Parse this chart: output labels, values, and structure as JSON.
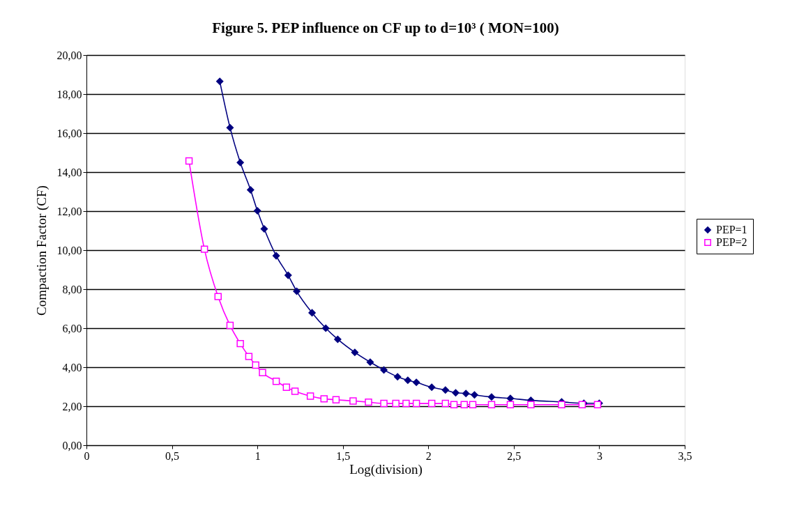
{
  "chart_data": {
    "type": "line",
    "title": "Figure 5. PEP influence on CF  up to d=10³ ( MON=100)",
    "xlabel": "Log(division)",
    "ylabel": "Compaction Factor (CF)",
    "xlim": [
      0,
      3.5
    ],
    "xticks": [
      0,
      {
        "value": 0.5,
        "label": "0,5"
      },
      1,
      {
        "value": 1.5,
        "label": "1,5"
      },
      2,
      {
        "value": 2.5,
        "label": "2,5"
      },
      3,
      {
        "value": 3.5,
        "label": "3,5"
      }
    ],
    "ylim": [
      0,
      20
    ],
    "yticks": [
      {
        "value": 0,
        "label": "0,00"
      },
      {
        "value": 2,
        "label": "2,00"
      },
      {
        "value": 4,
        "label": "4,00"
      },
      {
        "value": 6,
        "label": "6,00"
      },
      {
        "value": 8,
        "label": "8,00"
      },
      {
        "value": 10,
        "label": "10,00"
      },
      {
        "value": 12,
        "label": "12,00"
      },
      {
        "value": 14,
        "label": "14,00"
      },
      {
        "value": 16,
        "label": "16,00"
      },
      {
        "value": 18,
        "label": "18,00"
      },
      {
        "value": 20,
        "label": "20,00"
      }
    ],
    "grid": "y",
    "legend": "right",
    "line_style": "solid",
    "series": [
      {
        "name": "PEP=1",
        "color": "#000080",
        "marker": "diamond",
        "x": [
          0.78,
          0.84,
          0.9,
          0.96,
          1.0,
          1.04,
          1.11,
          1.18,
          1.23,
          1.32,
          1.4,
          1.47,
          1.57,
          1.66,
          1.74,
          1.82,
          1.88,
          1.93,
          2.02,
          2.1,
          2.16,
          2.22,
          2.27,
          2.37,
          2.48,
          2.6,
          2.78,
          2.91,
          3.0
        ],
        "values": [
          18.65,
          16.28,
          14.49,
          13.09,
          12.02,
          11.09,
          9.71,
          8.71,
          7.89,
          6.79,
          6.0,
          5.43,
          4.76,
          4.26,
          3.86,
          3.51,
          3.33,
          3.22,
          2.97,
          2.83,
          2.69,
          2.65,
          2.58,
          2.47,
          2.4,
          2.3,
          2.22,
          2.15,
          2.15
        ]
      },
      {
        "name": "PEP=2",
        "color": "#ff00ff",
        "marker": "square",
        "x": [
          0.6,
          0.69,
          0.77,
          0.84,
          0.9,
          0.95,
          0.99,
          1.03,
          1.11,
          1.17,
          1.22,
          1.31,
          1.39,
          1.46,
          1.56,
          1.65,
          1.74,
          1.81,
          1.87,
          1.93,
          2.02,
          2.1,
          2.15,
          2.21,
          2.26,
          2.37,
          2.48,
          2.6,
          2.78,
          2.9,
          2.99
        ],
        "values": [
          14.57,
          10.05,
          7.62,
          6.14,
          5.21,
          4.55,
          4.11,
          3.72,
          3.28,
          2.97,
          2.77,
          2.52,
          2.38,
          2.33,
          2.27,
          2.21,
          2.14,
          2.14,
          2.14,
          2.14,
          2.14,
          2.14,
          2.08,
          2.08,
          2.08,
          2.08,
          2.08,
          2.08,
          2.08,
          2.08,
          2.08
        ]
      }
    ]
  }
}
